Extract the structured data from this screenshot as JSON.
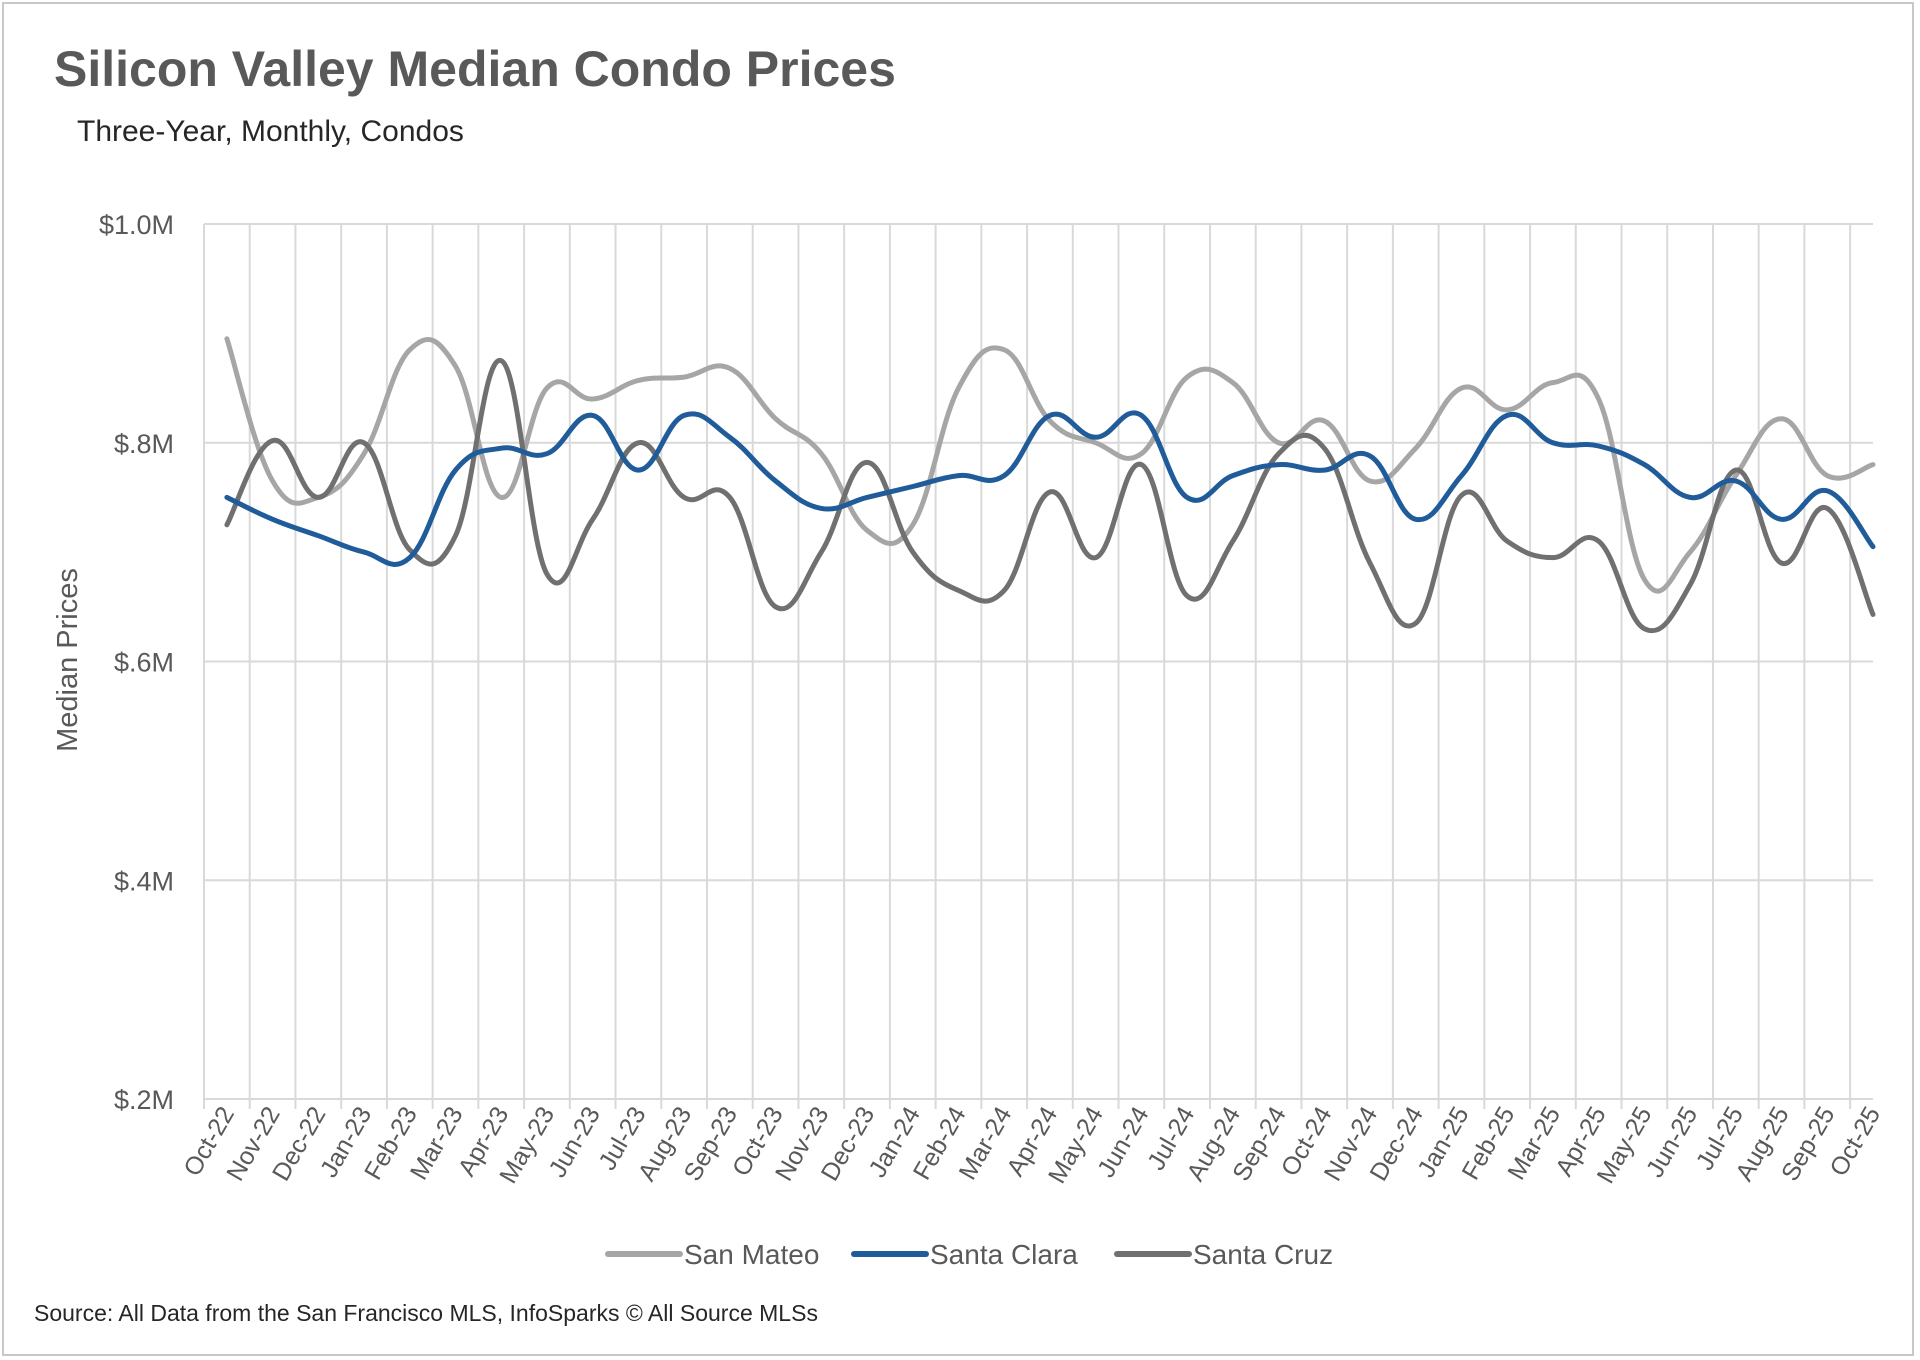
{
  "title": "Silicon Valley Median Condo Prices",
  "subtitle": "Three-Year, Monthly, Condos",
  "source": "Source: All Data from the San Francisco MLS, InfoSparks © All Source MLSs",
  "chart_data": {
    "type": "line",
    "ylabel": "Median Prices",
    "xlabel": "",
    "ylim": [
      200000,
      1000000
    ],
    "yticks": [
      {
        "value": 1000000,
        "label": "$1.0M"
      },
      {
        "value": 800000,
        "label": "$.8M"
      },
      {
        "value": 600000,
        "label": "$.6M"
      },
      {
        "value": 400000,
        "label": "$.4M"
      },
      {
        "value": 200000,
        "label": "$.2M"
      }
    ],
    "grid": true,
    "legend": "bottom",
    "categories": [
      "Oct-22",
      "Nov-22",
      "Dec-22",
      "Jan-23",
      "Feb-23",
      "Mar-23",
      "Apr-23",
      "May-23",
      "Jun-23",
      "Jul-23",
      "Aug-23",
      "Sep-23",
      "Oct-23",
      "Nov-23",
      "Dec-23",
      "Jan-24",
      "Feb-24",
      "Mar-24",
      "Apr-24",
      "May-24",
      "Jun-24",
      "Jul-24",
      "Aug-24",
      "Sep-24",
      "Oct-24",
      "Nov-24",
      "Dec-24",
      "Jan-25",
      "Feb-25",
      "Mar-25",
      "Apr-25",
      "May-25",
      "Jun-25",
      "Jul-25",
      "Aug-25",
      "Sep-25",
      "Oct-25"
    ],
    "series": [
      {
        "name": "San Mateo",
        "color": "#a6a6a6",
        "values": [
          895000,
          765000,
          750000,
          790000,
          885000,
          870000,
          750000,
          850000,
          840000,
          857000,
          860000,
          868000,
          822000,
          790000,
          720000,
          725000,
          850000,
          885000,
          820000,
          800000,
          790000,
          860000,
          855000,
          800000,
          820000,
          765000,
          795000,
          850000,
          830000,
          855000,
          840000,
          675000,
          700000,
          770000,
          822000,
          770000,
          780000
        ]
      },
      {
        "name": "Santa Clara",
        "color": "#1f5c99",
        "values": [
          750000,
          730000,
          715000,
          700000,
          695000,
          775000,
          795000,
          790000,
          825000,
          775000,
          825000,
          805000,
          765000,
          740000,
          750000,
          760000,
          770000,
          770000,
          825000,
          805000,
          825000,
          750000,
          770000,
          780000,
          775000,
          788000,
          730000,
          770000,
          825000,
          800000,
          797000,
          780000,
          750000,
          765000,
          730000,
          756000,
          705000
        ]
      },
      {
        "name": "Santa Cruz",
        "color": "#707070",
        "values": [
          725000,
          802000,
          750000,
          800000,
          702000,
          715000,
          875000,
          680000,
          730000,
          800000,
          750000,
          750000,
          650000,
          700000,
          782000,
          700000,
          665000,
          665000,
          755000,
          695000,
          780000,
          660000,
          710000,
          790000,
          795000,
          690000,
          635000,
          752000,
          710000,
          695000,
          710000,
          630000,
          670000,
          775000,
          690000,
          740000,
          643000
        ]
      }
    ]
  }
}
